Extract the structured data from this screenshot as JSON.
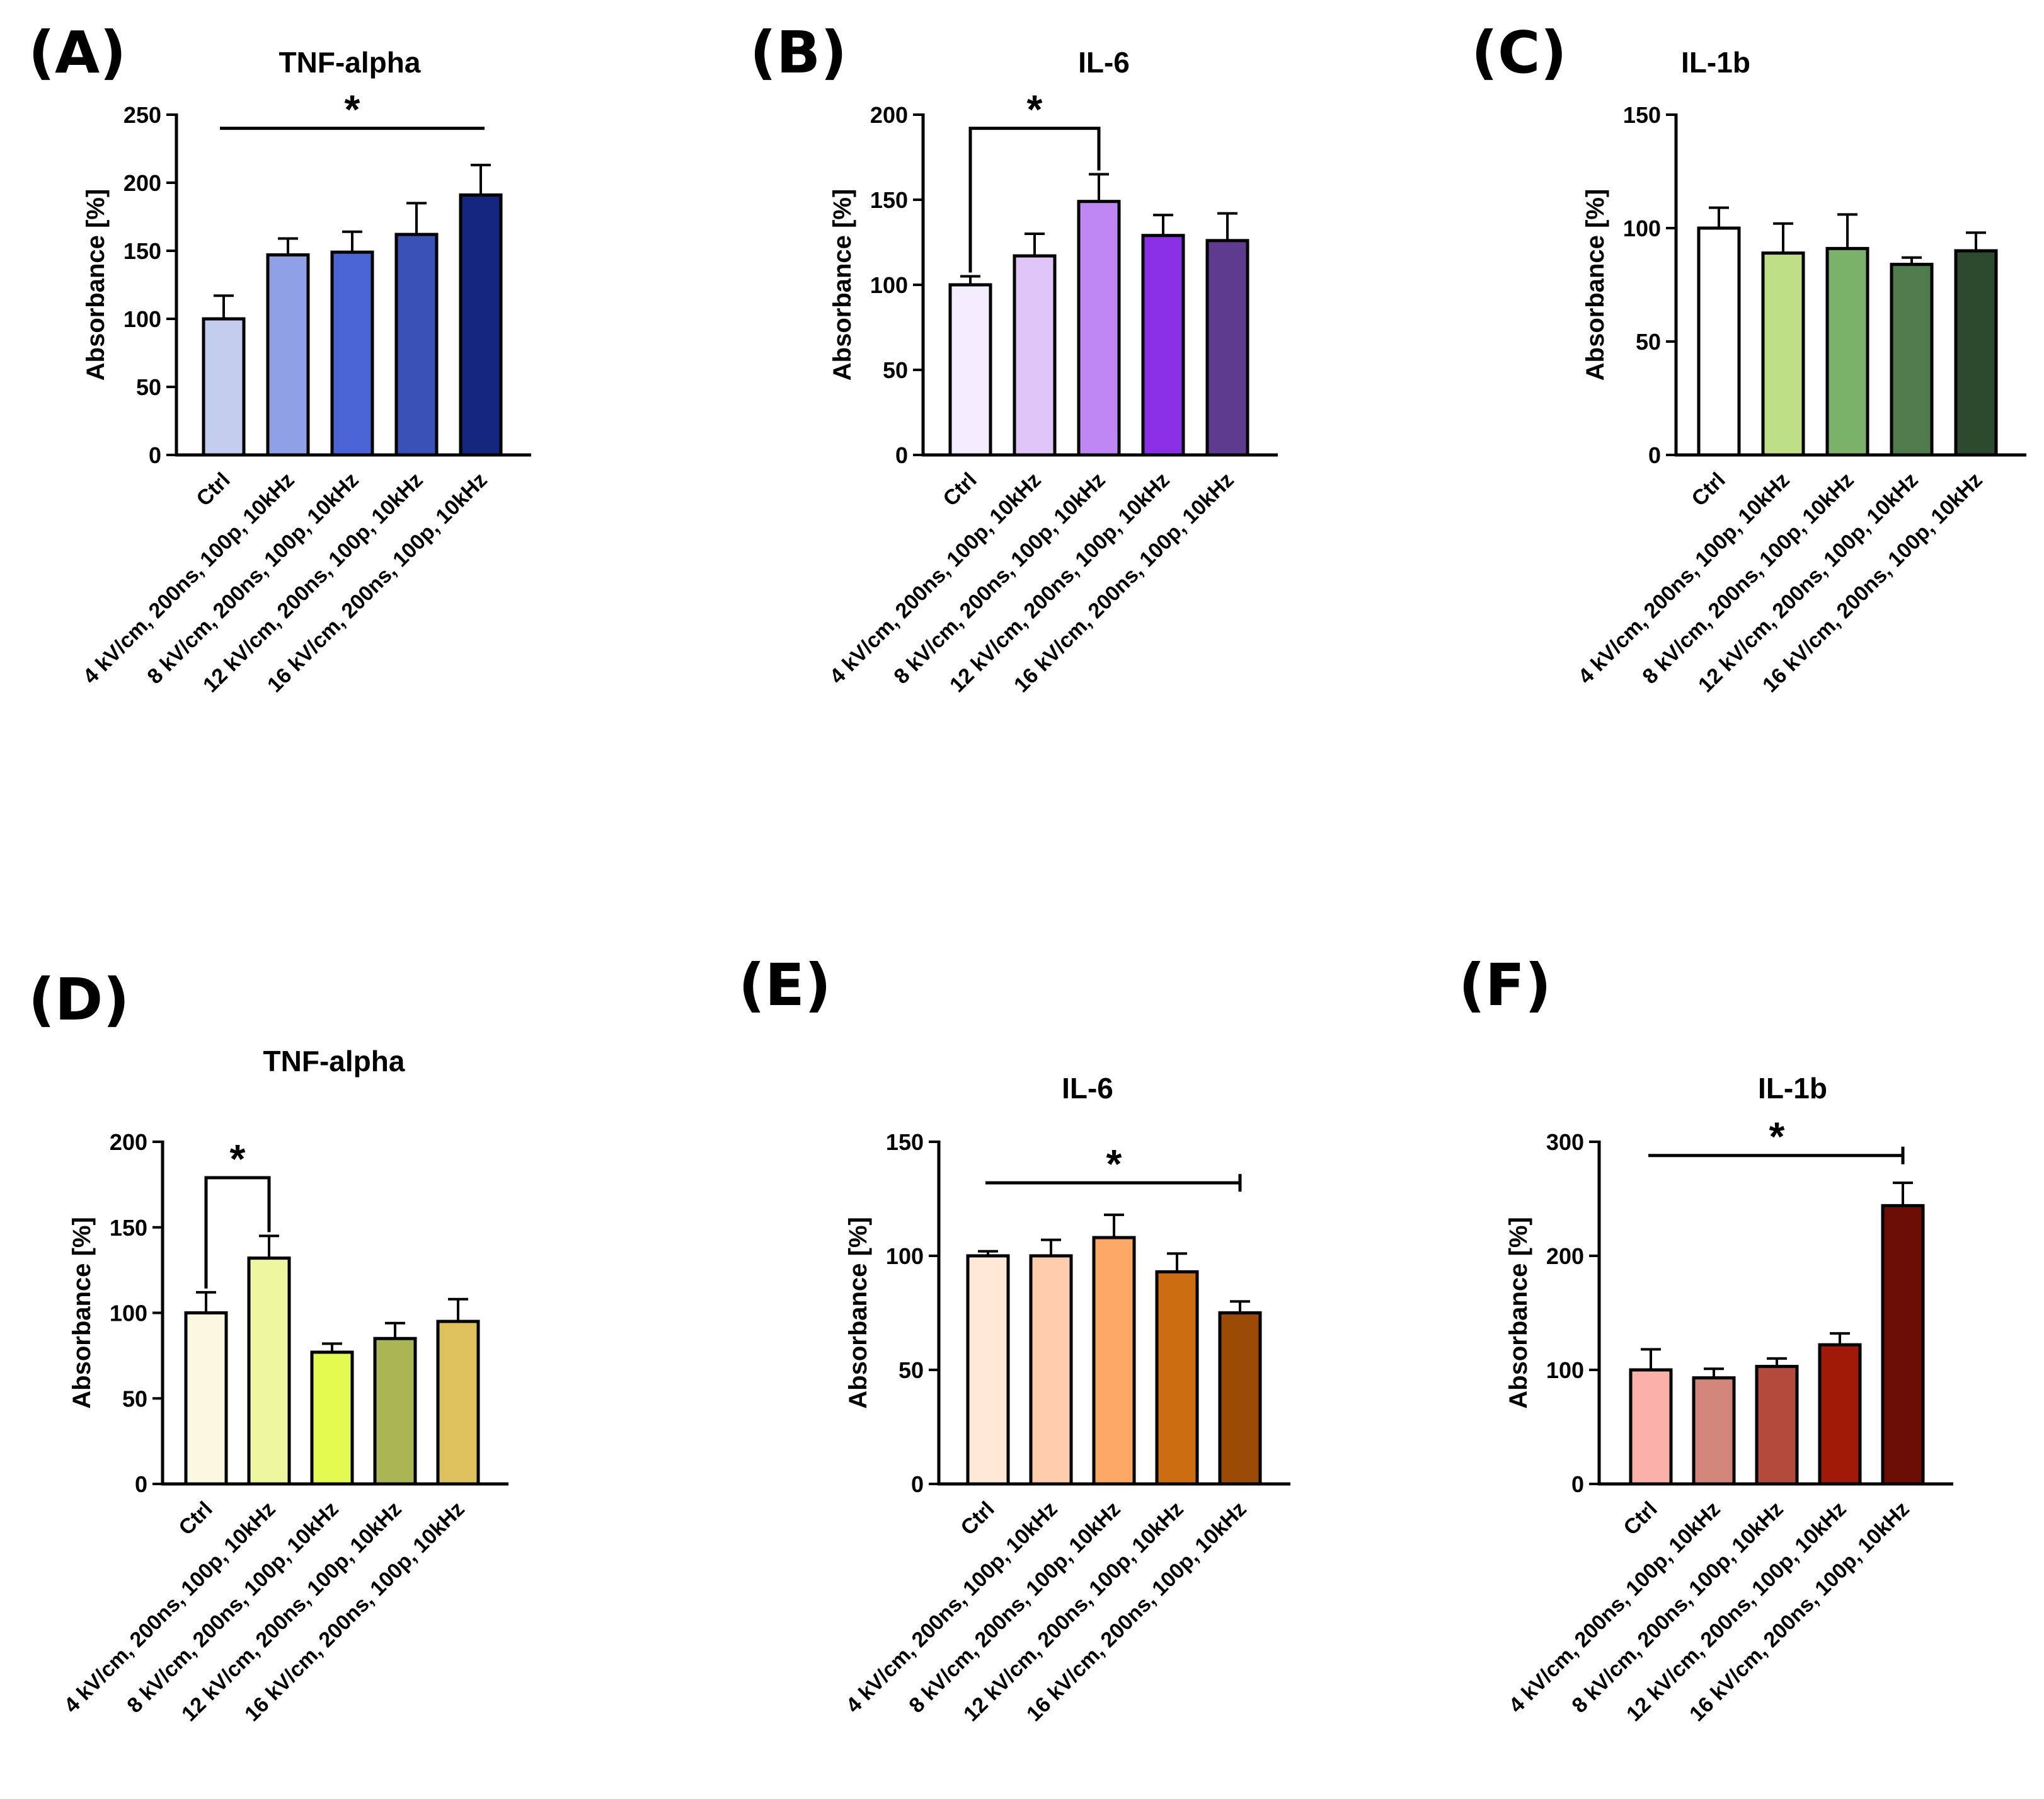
{
  "figure": {
    "categories": [
      "Ctrl",
      "4 kV/cm, 200ns, 100p, 10kHz",
      "8 kV/cm, 200ns, 100p, 10kHz",
      "12 kV/cm, 200ns, 100p, 10kHz",
      "16 kV/cm, 200ns, 100p, 10kHz"
    ]
  },
  "chart_data": [
    {
      "panel": "(A)",
      "type": "bar",
      "title": "TNF-alpha",
      "ylabel": "Absorbance [%]",
      "ylim": [
        0,
        250
      ],
      "yticks": [
        0,
        50,
        100,
        150,
        200,
        250
      ],
      "values": [
        100,
        147,
        149,
        162,
        191
      ],
      "errors": [
        17,
        12,
        15,
        23,
        22
      ],
      "colors": [
        "#c2ccec",
        "#8fa0e6",
        "#4a64d6",
        "#3a52b8",
        "#15267e"
      ],
      "significance": {
        "label": "*",
        "from": 0,
        "to": 4,
        "style": "line",
        "level": 240
      }
    },
    {
      "panel": "(B)",
      "type": "bar",
      "title": "IL-6",
      "ylabel": "Absorbance [%]",
      "ylim": [
        0,
        200
      ],
      "yticks": [
        0,
        50,
        100,
        150,
        200
      ],
      "values": [
        100,
        117,
        149,
        129,
        126
      ],
      "errors": [
        5,
        13,
        16,
        12,
        16
      ],
      "colors": [
        "#f3ecfd",
        "#dfc5f8",
        "#bf87f4",
        "#8a2fe6",
        "#5e3b8f"
      ],
      "significance": {
        "label": "*",
        "from": 0,
        "to": 2,
        "style": "bracket",
        "level": 192
      }
    },
    {
      "panel": "(C)",
      "type": "bar",
      "title": "IL-1b",
      "ylabel": "Absorbance [%]",
      "ylim": [
        0,
        150
      ],
      "yticks": [
        0,
        50,
        100,
        150
      ],
      "values": [
        100,
        89,
        91,
        84,
        90
      ],
      "errors": [
        9,
        13,
        15,
        3,
        8
      ],
      "colors": [
        "#ffffff",
        "#bfdf86",
        "#7ab26a",
        "#4f7b4d",
        "#2c4a2e"
      ],
      "significance": null
    },
    {
      "panel": "(D)",
      "type": "bar",
      "title": "TNF-alpha",
      "ylabel": "Absorbance  [%]",
      "ylim": [
        0,
        200
      ],
      "yticks": [
        0,
        50,
        100,
        150,
        200
      ],
      "values": [
        100,
        132,
        77,
        85,
        95
      ],
      "errors": [
        12,
        13,
        5,
        9,
        13
      ],
      "colors": [
        "#fcf8df",
        "#eef79f",
        "#e3fa50",
        "#a9b653",
        "#ddc15c"
      ],
      "significance": {
        "label": "*",
        "from": 0,
        "to": 1,
        "style": "bracket",
        "level": 179
      }
    },
    {
      "panel": "(E)",
      "type": "bar",
      "title": "IL-6",
      "ylabel": "Absorbance  [%]",
      "ylim": [
        0,
        150
      ],
      "yticks": [
        0,
        50,
        100,
        150
      ],
      "values": [
        100,
        100,
        108,
        93,
        75
      ],
      "errors": [
        2,
        7,
        10,
        8,
        5
      ],
      "colors": [
        "#fde9d6",
        "#fcccac",
        "#fba864",
        "#cd6d12",
        "#9a4a05"
      ],
      "significance": {
        "label": "*",
        "from": 0,
        "to": 4,
        "style": "line-tick",
        "level": 132
      }
    },
    {
      "panel": "(F)",
      "type": "bar",
      "title": "IL-1b",
      "ylabel": "Absorbance  [%]",
      "ylim": [
        0,
        300
      ],
      "yticks": [
        0,
        100,
        200,
        300
      ],
      "values": [
        100,
        93,
        103,
        122,
        244
      ],
      "errors": [
        18,
        8,
        7,
        10,
        20
      ],
      "colors": [
        "#f9b1a9",
        "#d2867a",
        "#b34a3c",
        "#a11a08",
        "#6b0c05"
      ],
      "significance": {
        "label": "*",
        "from": 0,
        "to": 4,
        "style": "line-tick",
        "level": 288
      }
    }
  ]
}
